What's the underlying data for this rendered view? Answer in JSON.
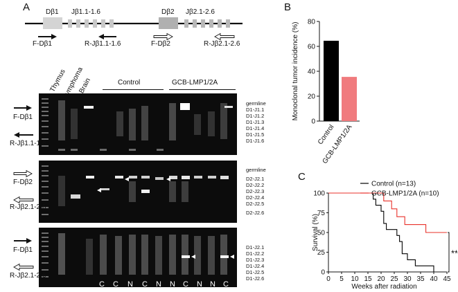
{
  "panel_a": {
    "letter": "A",
    "gene_map": {
      "segments": [
        "Dβ1",
        "Jβ1.1-1.6",
        "Dβ2",
        "Jβ2.1-2.6"
      ],
      "primers": [
        "F-Dβ1",
        "R-Jβ1.1-1.6",
        "F-Dβ2",
        "R-Jβ2.1-2.6"
      ]
    },
    "lane_headers": [
      "Thymus",
      "Lymphoma",
      "Brain"
    ],
    "group_labels": [
      "Control",
      "GCB-LMP1/2A"
    ],
    "gel1": {
      "primers": [
        "F-Dβ1",
        "R-Jβ1.1-1.6"
      ],
      "band_labels": [
        "germline",
        "D1-J1.1",
        "D1-J1.2",
        "D1-J1.3",
        "D1-J1.4",
        "D1-J1.5",
        "D1-J1.6"
      ]
    },
    "gel2": {
      "primers": [
        "F-Dβ2",
        "R-Jβ2.1-2.6"
      ],
      "band_labels": [
        "germline",
        "D2-J2.1",
        "D2-J2.2",
        "D2-J2.3",
        "D2-J2.4",
        "D2-J2.5",
        "D2-J2.6"
      ]
    },
    "gel3": {
      "primers": [
        "F-Dβ1",
        "R-Jβ2.1-2.6"
      ],
      "band_labels": [
        "D1-J2.1",
        "D1-J2.2",
        "D1-J2.3",
        "D1-J2.4",
        "D1-J2.5",
        "D1-J2.6"
      ]
    },
    "clonality_labels": [
      "C",
      "C",
      "N",
      "C",
      "N",
      "N",
      "C",
      "N",
      "N",
      "C"
    ]
  },
  "panel_b": {
    "letter": "B",
    "chart_data": {
      "type": "bar",
      "categories": [
        "Control",
        "GCB-LMP1/2A"
      ],
      "values": [
        64.5,
        35.5
      ],
      "colors": [
        "#000000",
        "#f07b7e"
      ],
      "ylabel": "Monoclonal tumor incidence (%)",
      "ylim": [
        0,
        80
      ],
      "yticks": [
        "0",
        "20",
        "40",
        "60",
        "80"
      ]
    }
  },
  "panel_c": {
    "letter": "C",
    "chart_data": {
      "type": "line",
      "step": true,
      "xlabel": "Weeks  after radiation",
      "ylabel": "Survival (%)",
      "xlim": [
        0,
        45
      ],
      "ylim": [
        0,
        100
      ],
      "xticks": [
        "0",
        "5",
        "10",
        "15",
        "20",
        "25",
        "30",
        "35",
        "40",
        "45"
      ],
      "yticks": [
        "0",
        "25",
        "50",
        "75",
        "100"
      ],
      "series": [
        {
          "name": "Control (n=13)",
          "color": "#000000",
          "x": [
            0,
            16,
            17,
            18,
            20,
            21,
            22,
            24,
            26,
            27,
            28,
            30,
            33,
            40
          ],
          "y": [
            100,
            100,
            92.3,
            84.6,
            76.9,
            61.5,
            53.8,
            53.8,
            46.2,
            38.5,
            23.1,
            15.4,
            7.7,
            0
          ]
        },
        {
          "name": "GCB-LMP1/2A (n=10)",
          "color": "#e8302a",
          "x": [
            0,
            20,
            21,
            24,
            26,
            28,
            29,
            37,
            45
          ],
          "y": [
            100,
            100,
            90,
            80,
            70,
            70,
            60,
            50,
            50
          ]
        }
      ],
      "significance": "**",
      "legend_position": "top-right"
    }
  }
}
